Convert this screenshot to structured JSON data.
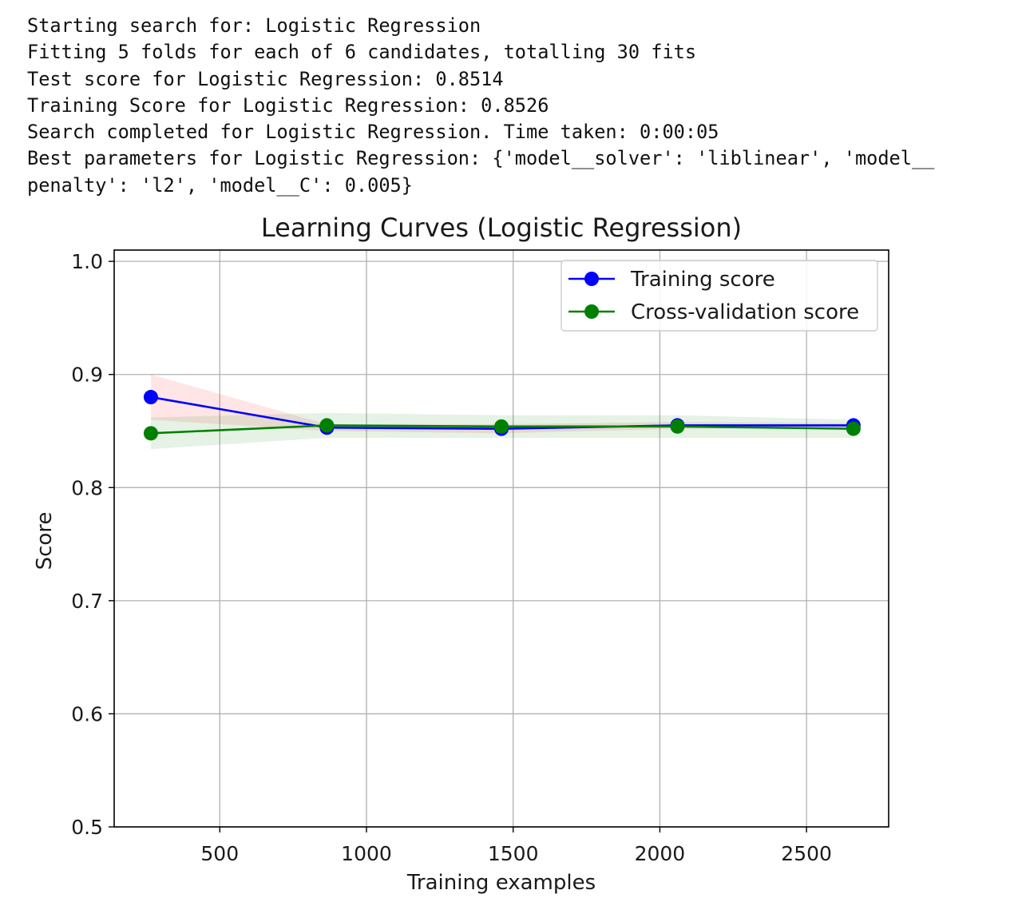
{
  "console_output": {
    "lines": [
      "Starting search for: Logistic Regression",
      "Fitting 5 folds for each of 6 candidates, totalling 30 fits",
      "Test score for Logistic Regression: 0.8514",
      "Training Score for Logistic Regression: 0.8526",
      "Search completed for Logistic Regression. Time taken: 0:00:05",
      "Best parameters for Logistic Regression: {'model__solver': 'liblinear', 'model__",
      "penalty': 'l2', 'model__C': 0.005}"
    ]
  },
  "chart_data": {
    "type": "line",
    "title": "Learning Curves (Logistic Regression)",
    "xlabel": "Training examples",
    "ylabel": "Score",
    "xlim": [
      140,
      2780
    ],
    "ylim": [
      0.5,
      1.01
    ],
    "xticks": [
      500,
      1000,
      1500,
      2000,
      2500
    ],
    "xtick_labels": [
      "500",
      "1000",
      "1500",
      "2000",
      "2500"
    ],
    "yticks": [
      0.5,
      0.6,
      0.7,
      0.8,
      0.9,
      1.0
    ],
    "ytick_labels": [
      "0.5",
      "0.6",
      "0.7",
      "0.8",
      "0.9",
      "1.0"
    ],
    "grid": true,
    "legend_position": "top-right",
    "x": [
      265,
      865,
      1460,
      2060,
      2660
    ],
    "series": [
      {
        "name": "Training score",
        "color": "#0000ff",
        "band_color": "#ff0000",
        "values": [
          0.88,
          0.853,
          0.852,
          0.855,
          0.855
        ],
        "band_upper": [
          0.9,
          0.856,
          0.856,
          0.858,
          0.857
        ],
        "band_lower": [
          0.86,
          0.85,
          0.848,
          0.852,
          0.853
        ]
      },
      {
        "name": "Cross-validation score",
        "color": "#008000",
        "band_color": "#008000",
        "values": [
          0.848,
          0.855,
          0.854,
          0.854,
          0.852
        ],
        "band_upper": [
          0.862,
          0.866,
          0.864,
          0.864,
          0.86
        ],
        "band_lower": [
          0.834,
          0.844,
          0.844,
          0.844,
          0.844
        ]
      }
    ]
  }
}
